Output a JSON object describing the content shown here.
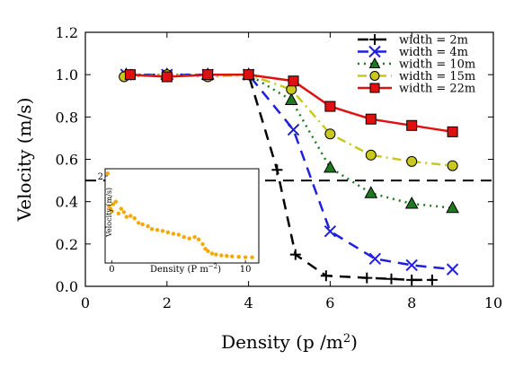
{
  "chart_data": [
    {
      "type": "line",
      "xlabel": "Density (p /m²)",
      "xlabel_main": "Density (p /m",
      "xlabel_sup": "2",
      "xlabel_close": ")",
      "ylabel": "Velocity (m/s)",
      "xlim": [
        0,
        10
      ],
      "ylim": [
        0.0,
        1.2
      ],
      "xticks": [
        0,
        2,
        4,
        6,
        8,
        10
      ],
      "yticks": [
        0.0,
        0.2,
        0.4,
        0.6,
        0.8,
        1.0,
        1.2
      ],
      "xtick_labels": [
        "0",
        "2",
        "4",
        "6",
        "8",
        "10"
      ],
      "ytick_labels": [
        "0.0",
        "0.2",
        "0.4",
        "0.6",
        "0.8",
        "1.0",
        "1.2"
      ],
      "grid": false,
      "legend_position": "top-right",
      "reference_line": {
        "y": 0.5,
        "style": "dashed",
        "color": "#000000"
      },
      "series": [
        {
          "name": "width = 2m",
          "color": "#000000",
          "line_style": "dashed",
          "marker": "plus",
          "x": [
            1.0,
            2.0,
            3.0,
            4.0,
            4.7,
            5.15,
            5.9,
            6.9,
            7.5,
            8.0,
            8.5
          ],
          "y": [
            1.0,
            1.0,
            1.0,
            1.0,
            0.55,
            0.15,
            0.05,
            0.04,
            0.035,
            0.03,
            0.03
          ]
        },
        {
          "name": "width = 4m",
          "color": "#1f1fe0",
          "line_style": "dashed",
          "marker": "x",
          "x": [
            1.0,
            2.0,
            3.0,
            4.0,
            5.1,
            6.0,
            7.1,
            8.0,
            9.0
          ],
          "y": [
            1.0,
            1.0,
            1.0,
            1.0,
            0.74,
            0.26,
            0.13,
            0.1,
            0.08
          ]
        },
        {
          "name": "width = 10m",
          "color": "#1f7a1f",
          "line_style": "dotted",
          "marker": "triangle",
          "x": [
            1.0,
            2.0,
            3.0,
            4.0,
            5.05,
            6.0,
            7.0,
            8.0,
            9.0
          ],
          "y": [
            1.0,
            1.0,
            1.0,
            1.0,
            0.88,
            0.56,
            0.44,
            0.39,
            0.37
          ]
        },
        {
          "name": "width = 15m",
          "color": "#c8c820",
          "line_style": "dashdot",
          "marker": "circle",
          "x": [
            0.95,
            2.0,
            3.0,
            4.0,
            5.05,
            6.0,
            7.0,
            8.0,
            9.0
          ],
          "y": [
            0.99,
            1.0,
            0.99,
            1.0,
            0.93,
            0.72,
            0.62,
            0.59,
            0.57
          ]
        },
        {
          "name": "width = 22m",
          "color": "#e01010",
          "line_style": "solid",
          "marker": "square",
          "x": [
            1.1,
            2.0,
            3.0,
            4.0,
            5.1,
            6.0,
            7.0,
            8.0,
            9.0
          ],
          "y": [
            1.0,
            0.99,
            1.0,
            1.0,
            0.97,
            0.85,
            0.79,
            0.76,
            0.73
          ]
        }
      ]
    },
    {
      "type": "scatter",
      "position": "inset-lower-left",
      "xlabel": "Density (P m⁻²)",
      "xlabel_main": "Density (P m",
      "xlabel_sup": "−2",
      "xlabel_close": ")",
      "ylabel": "Velocity (m/s)",
      "xlim": [
        -0.5,
        11
      ],
      "ylim": [
        0,
        2
      ],
      "xticks": [
        0,
        10
      ],
      "yticks": [
        2
      ],
      "xtick_labels": [
        "0",
        "10"
      ],
      "ytick_labels": [
        "2"
      ],
      "color": "#f5a800",
      "x": [
        -0.3,
        -0.2,
        -0.1,
        0.0,
        0.1,
        0.3,
        0.5,
        0.7,
        0.9,
        1.1,
        1.4,
        1.7,
        2.0,
        2.3,
        2.7,
        3.0,
        3.4,
        3.8,
        4.2,
        4.6,
        5.0,
        5.4,
        5.8,
        6.2,
        6.5,
        6.8,
        7.0,
        7.2,
        7.5,
        7.8,
        8.2,
        8.6,
        9.0,
        9.5,
        10.0,
        10.5
      ],
      "y": [
        1.9,
        1.2,
        1.15,
        1.1,
        1.25,
        1.3,
        1.05,
        1.15,
        1.08,
        0.98,
        1.0,
        0.95,
        0.85,
        0.82,
        0.78,
        0.72,
        0.7,
        0.68,
        0.65,
        0.62,
        0.6,
        0.55,
        0.52,
        0.55,
        0.5,
        0.4,
        0.3,
        0.25,
        0.2,
        0.18,
        0.16,
        0.15,
        0.14,
        0.13,
        0.12,
        0.12
      ]
    }
  ]
}
